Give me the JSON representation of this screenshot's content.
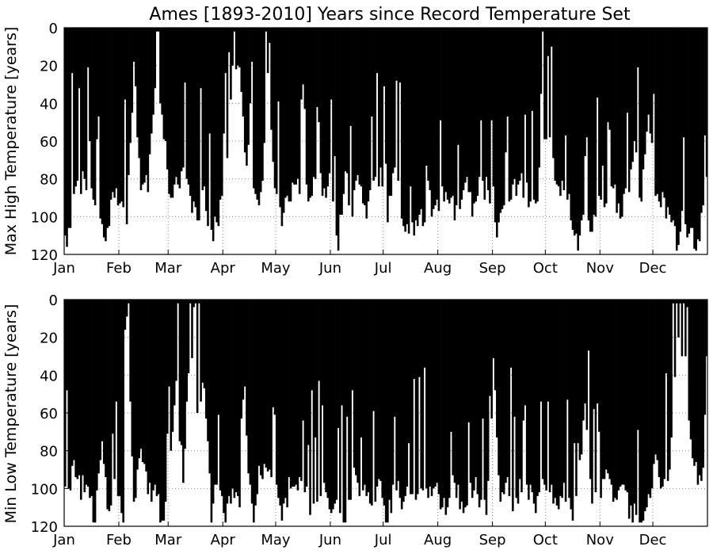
{
  "chart_data": {
    "title": "Ames [1893-2010] Years since Record Temperature Set",
    "panels": [
      {
        "type": "bar",
        "ylabel": "Max High Temperature [years]",
        "ylim": [
          120,
          0
        ],
        "yticks": [
          0,
          20,
          40,
          60,
          80,
          100,
          120
        ],
        "xticks": [
          "Jan",
          "Feb",
          "Mar",
          "Apr",
          "May",
          "Jun",
          "Jul",
          "Aug",
          "Sep",
          "Oct",
          "Nov",
          "Dec"
        ],
        "grid": "dotted",
        "bar_color": "#000000",
        "x": "day of year (1-365)",
        "anchors": [
          [
            1,
            113
          ],
          [
            3,
            106
          ],
          [
            5,
            94
          ],
          [
            8,
            88
          ],
          [
            12,
            80
          ],
          [
            16,
            82
          ],
          [
            20,
            100
          ],
          [
            24,
            114
          ],
          [
            28,
            86
          ],
          [
            32,
            96
          ],
          [
            36,
            102
          ],
          [
            40,
            22
          ],
          [
            44,
            86
          ],
          [
            48,
            84
          ],
          [
            52,
            34
          ],
          [
            56,
            40
          ],
          [
            60,
            88
          ],
          [
            64,
            80
          ],
          [
            68,
            80
          ],
          [
            72,
            88
          ],
          [
            76,
            104
          ],
          [
            80,
            84
          ],
          [
            84,
            112
          ],
          [
            88,
            100
          ],
          [
            92,
            82
          ],
          [
            96,
            24
          ],
          [
            100,
            26
          ],
          [
            104,
            80
          ],
          [
            108,
            90
          ],
          [
            112,
            92
          ],
          [
            116,
            30
          ],
          [
            120,
            84
          ],
          [
            124,
            98
          ],
          [
            128,
            86
          ],
          [
            132,
            90
          ],
          [
            136,
            76
          ],
          [
            140,
            92
          ],
          [
            144,
            76
          ],
          [
            148,
            84
          ],
          [
            152,
            82
          ],
          [
            156,
            114
          ],
          [
            160,
            80
          ],
          [
            164,
            96
          ],
          [
            168,
            76
          ],
          [
            172,
            96
          ],
          [
            176,
            76
          ],
          [
            180,
            78
          ],
          [
            184,
            100
          ],
          [
            188,
            76
          ],
          [
            192,
            96
          ],
          [
            196,
            108
          ],
          [
            200,
            108
          ],
          [
            204,
            100
          ],
          [
            208,
            108
          ],
          [
            212,
            96
          ],
          [
            216,
            86
          ],
          [
            220,
            92
          ],
          [
            224,
            98
          ],
          [
            228,
            80
          ],
          [
            232,
            96
          ],
          [
            236,
            80
          ],
          [
            240,
            86
          ],
          [
            244,
            112
          ],
          [
            248,
            96
          ],
          [
            252,
            86
          ],
          [
            256,
            84
          ],
          [
            260,
            80
          ],
          [
            264,
            92
          ],
          [
            268,
            98
          ],
          [
            272,
            56
          ],
          [
            276,
            60
          ],
          [
            280,
            88
          ],
          [
            284,
            80
          ],
          [
            288,
            100
          ],
          [
            292,
            112
          ],
          [
            296,
            96
          ],
          [
            300,
            104
          ],
          [
            304,
            92
          ],
          [
            308,
            98
          ],
          [
            312,
            82
          ],
          [
            316,
            102
          ],
          [
            320,
            88
          ],
          [
            324,
            66
          ],
          [
            328,
            92
          ],
          [
            332,
            48
          ],
          [
            336,
            88
          ],
          [
            340,
            92
          ],
          [
            344,
            98
          ],
          [
            348,
            116
          ],
          [
            352,
            100
          ],
          [
            356,
            110
          ],
          [
            360,
            116
          ],
          [
            363,
            92
          ],
          [
            365,
            80
          ]
        ]
      },
      {
        "type": "bar",
        "ylabel": "Min Low Temperature [years]",
        "ylim": [
          120,
          0
        ],
        "yticks": [
          0,
          20,
          40,
          60,
          80,
          100,
          120
        ],
        "xticks": [
          "Jan",
          "Feb",
          "Mar",
          "Apr",
          "May",
          "Jun",
          "Jul",
          "Aug",
          "Sep",
          "Oct",
          "Nov",
          "Dec"
        ],
        "grid": "dotted",
        "bar_color": "#000000",
        "x": "day of year (1-365)",
        "anchors": [
          [
            1,
            100
          ],
          [
            3,
            100
          ],
          [
            6,
            86
          ],
          [
            10,
            100
          ],
          [
            14,
            98
          ],
          [
            18,
            116
          ],
          [
            22,
            74
          ],
          [
            26,
            116
          ],
          [
            30,
            94
          ],
          [
            34,
            116
          ],
          [
            36,
            14
          ],
          [
            40,
            106
          ],
          [
            44,
            80
          ],
          [
            48,
            104
          ],
          [
            52,
            96
          ],
          [
            56,
            116
          ],
          [
            60,
            98
          ],
          [
            64,
            36
          ],
          [
            68,
            100
          ],
          [
            72,
            22
          ],
          [
            76,
            62
          ],
          [
            80,
            44
          ],
          [
            84,
            116
          ],
          [
            88,
            88
          ],
          [
            92,
            116
          ],
          [
            96,
            104
          ],
          [
            100,
            112
          ],
          [
            104,
            78
          ],
          [
            108,
            116
          ],
          [
            112,
            86
          ],
          [
            116,
            94
          ],
          [
            120,
            100
          ],
          [
            124,
            116
          ],
          [
            128,
            100
          ],
          [
            132,
            102
          ],
          [
            136,
            96
          ],
          [
            140,
            116
          ],
          [
            144,
            100
          ],
          [
            148,
            96
          ],
          [
            152,
            110
          ],
          [
            156,
            104
          ],
          [
            160,
            116
          ],
          [
            164,
            94
          ],
          [
            168,
            100
          ],
          [
            172,
            104
          ],
          [
            176,
            110
          ],
          [
            180,
            96
          ],
          [
            184,
            116
          ],
          [
            188,
            98
          ],
          [
            192,
            104
          ],
          [
            196,
            100
          ],
          [
            200,
            112
          ],
          [
            204,
            98
          ],
          [
            208,
            100
          ],
          [
            212,
            104
          ],
          [
            216,
            112
          ],
          [
            220,
            94
          ],
          [
            224,
            102
          ],
          [
            228,
            114
          ],
          [
            232,
            98
          ],
          [
            236,
            104
          ],
          [
            240,
            116
          ],
          [
            244,
            36
          ],
          [
            248,
            104
          ],
          [
            252,
            100
          ],
          [
            256,
            112
          ],
          [
            260,
            96
          ],
          [
            264,
            104
          ],
          [
            268,
            108
          ],
          [
            272,
            100
          ],
          [
            276,
            96
          ],
          [
            280,
            112
          ],
          [
            284,
            96
          ],
          [
            288,
            114
          ],
          [
            292,
            100
          ],
          [
            296,
            60
          ],
          [
            300,
            104
          ],
          [
            304,
            110
          ],
          [
            308,
            92
          ],
          [
            312,
            102
          ],
          [
            316,
            100
          ],
          [
            320,
            108
          ],
          [
            324,
            112
          ],
          [
            328,
            118
          ],
          [
            332,
            110
          ],
          [
            336,
            86
          ],
          [
            340,
            104
          ],
          [
            344,
            96
          ],
          [
            348,
            28
          ],
          [
            352,
            22
          ],
          [
            356,
            80
          ],
          [
            360,
            96
          ],
          [
            363,
            92
          ],
          [
            365,
            36
          ]
        ]
      }
    ]
  }
}
